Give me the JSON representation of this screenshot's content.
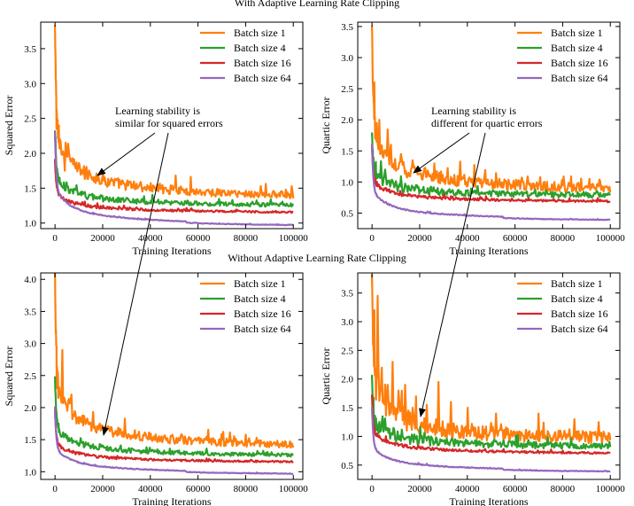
{
  "figure": {
    "top_title": "With Adaptive Learning Rate Clipping",
    "bottom_title": "Without Adaptive Learning Rate Clipping"
  },
  "colors": {
    "bs1": "#ff7f0e",
    "bs4": "#2ca02c",
    "bs16": "#d62728",
    "bs64": "#9467bd"
  },
  "annotations": {
    "squared_line1": "Learning stability is",
    "squared_line2": "similar for squared errors",
    "quartic_line1": "Learning stability is",
    "quartic_line2": "different for quartic errors"
  },
  "chart_data": [
    {
      "type": "line",
      "id": "tl",
      "section": "With Adaptive Learning Rate Clipping",
      "xlabel": "Training Iterations",
      "ylabel": "Squared Error",
      "xlim": [
        -6000,
        104000
      ],
      "ylim": [
        0.92,
        3.88
      ],
      "xticks": [
        0,
        20000,
        40000,
        60000,
        80000,
        100000
      ],
      "yticks": [
        1.0,
        1.5,
        2.0,
        2.5,
        3.0,
        3.5
      ],
      "ytick_labels": [
        "1.0",
        "1.5",
        "2.0",
        "2.5",
        "3.0",
        "3.5"
      ],
      "series": [
        {
          "name": "Batch size 1",
          "key": "bs1",
          "start": 3.8,
          "plateau": 1.38,
          "noise": 0.05,
          "spikes": [
            [
              600,
              2.35
            ],
            [
              1600,
              2.4
            ],
            [
              4200,
              1.75
            ]
          ]
        },
        {
          "name": "Batch size 4",
          "key": "bs4",
          "start": 2.3,
          "plateau": 1.25,
          "noise": 0.025,
          "spikes": [
            [
              1500,
              1.6
            ],
            [
              3500,
              1.5
            ]
          ]
        },
        {
          "name": "Batch size 16",
          "key": "bs16",
          "start": 1.9,
          "plateau": 1.15,
          "noise": 0.012,
          "spikes": []
        },
        {
          "name": "Batch size 64",
          "key": "bs64",
          "start": 2.3,
          "plateau": 0.98,
          "noise": 0.004,
          "spikes": []
        }
      ]
    },
    {
      "type": "line",
      "id": "tr",
      "section": "With Adaptive Learning Rate Clipping",
      "xlabel": "Training Iterations",
      "ylabel": "Quartic Error",
      "xlim": [
        -6000,
        104000
      ],
      "ylim": [
        0.25,
        3.57
      ],
      "xticks": [
        0,
        20000,
        40000,
        60000,
        80000,
        100000
      ],
      "yticks": [
        0.5,
        1.0,
        1.5,
        2.0,
        2.5,
        3.0,
        3.5
      ],
      "ytick_labels": [
        "0.5",
        "1.0",
        "1.5",
        "2.0",
        "2.5",
        "3.0",
        "3.5"
      ],
      "series": [
        {
          "name": "Batch size 1",
          "key": "bs1",
          "start": 3.45,
          "plateau": 0.88,
          "noise": 0.07,
          "spikes": [
            [
              1000,
              2.6
            ],
            [
              2000,
              1.95
            ],
            [
              3200,
              2.0
            ],
            [
              5000,
              1.5
            ],
            [
              8000,
              1.6
            ],
            [
              12000,
              1.45
            ],
            [
              17000,
              1.35
            ],
            [
              26000,
              1.3
            ]
          ]
        },
        {
          "name": "Batch size 4",
          "key": "bs4",
          "start": 1.75,
          "plateau": 0.78,
          "noise": 0.04,
          "spikes": [
            [
              1500,
              1.3
            ],
            [
              5500,
              1.2
            ]
          ]
        },
        {
          "name": "Batch size 16",
          "key": "bs16",
          "start": 1.55,
          "plateau": 0.68,
          "noise": 0.015,
          "spikes": []
        },
        {
          "name": "Batch size 64",
          "key": "bs64",
          "start": 1.6,
          "plateau": 0.4,
          "noise": 0.005,
          "spikes": []
        }
      ]
    },
    {
      "type": "line",
      "id": "bl",
      "section": "Without Adaptive Learning Rate Clipping",
      "xlabel": "Training Iterations",
      "ylabel": "Squared Error",
      "xlim": [
        -6000,
        104000
      ],
      "ylim": [
        0.88,
        4.1
      ],
      "xticks": [
        0,
        20000,
        40000,
        60000,
        80000,
        100000
      ],
      "yticks": [
        1.0,
        1.5,
        2.0,
        2.5,
        3.0,
        3.5,
        4.0
      ],
      "ytick_labels": [
        "1.0",
        "1.5",
        "2.0",
        "2.5",
        "3.0",
        "3.5",
        "4.0"
      ],
      "series": [
        {
          "name": "Batch size 1",
          "key": "bs1",
          "start": 4.05,
          "plateau": 1.4,
          "noise": 0.05,
          "spikes": [
            [
              700,
              2.3
            ],
            [
              1400,
              2.15
            ],
            [
              3200,
              2.9
            ],
            [
              5200,
              1.95
            ],
            [
              9000,
              1.75
            ]
          ]
        },
        {
          "name": "Batch size 4",
          "key": "bs4",
          "start": 2.45,
          "plateau": 1.25,
          "noise": 0.025,
          "spikes": [
            [
              1500,
              1.75
            ]
          ]
        },
        {
          "name": "Batch size 16",
          "key": "bs16",
          "start": 1.95,
          "plateau": 1.15,
          "noise": 0.012,
          "spikes": []
        },
        {
          "name": "Batch size 64",
          "key": "bs64",
          "start": 2.0,
          "plateau": 0.98,
          "noise": 0.004,
          "spikes": []
        }
      ]
    },
    {
      "type": "line",
      "id": "br",
      "section": "Without Adaptive Learning Rate Clipping",
      "xlabel": "Training Iterations",
      "ylabel": "Quartic Error",
      "xlim": [
        -6000,
        104000
      ],
      "ylim": [
        0.25,
        3.85
      ],
      "xticks": [
        0,
        20000,
        40000,
        60000,
        80000,
        100000
      ],
      "yticks": [
        0.5,
        1.0,
        1.5,
        2.0,
        2.5,
        3.0,
        3.5
      ],
      "ytick_labels": [
        "0.5",
        "1.0",
        "1.5",
        "2.0",
        "2.5",
        "3.0",
        "3.5"
      ],
      "series": [
        {
          "name": "Batch size 1",
          "key": "bs1",
          "start": 3.7,
          "plateau": 0.95,
          "noise": 0.1,
          "spikes": [
            [
              1000,
              3.2
            ],
            [
              2200,
              3.45
            ],
            [
              4000,
              2.2
            ],
            [
              6500,
              1.9
            ],
            [
              8500,
              2.3
            ],
            [
              11000,
              1.8
            ],
            [
              14000,
              1.9
            ],
            [
              17000,
              1.5
            ],
            [
              23000,
              1.55
            ],
            [
              28000,
              1.95
            ],
            [
              33000,
              1.6
            ],
            [
              40000,
              1.5
            ],
            [
              52000,
              1.4
            ],
            [
              70000,
              1.4
            ],
            [
              85000,
              1.3
            ],
            [
              95000,
              1.25
            ]
          ]
        },
        {
          "name": "Batch size 4",
          "key": "bs4",
          "start": 2.0,
          "plateau": 0.82,
          "noise": 0.05,
          "spikes": [
            [
              1500,
              1.3
            ],
            [
              4000,
              1.25
            ],
            [
              9000,
              1.15
            ]
          ]
        },
        {
          "name": "Batch size 16",
          "key": "bs16",
          "start": 1.7,
          "plateau": 0.7,
          "noise": 0.015,
          "spikes": []
        },
        {
          "name": "Batch size 64",
          "key": "bs64",
          "start": 1.5,
          "plateau": 0.4,
          "noise": 0.005,
          "spikes": []
        }
      ]
    }
  ]
}
